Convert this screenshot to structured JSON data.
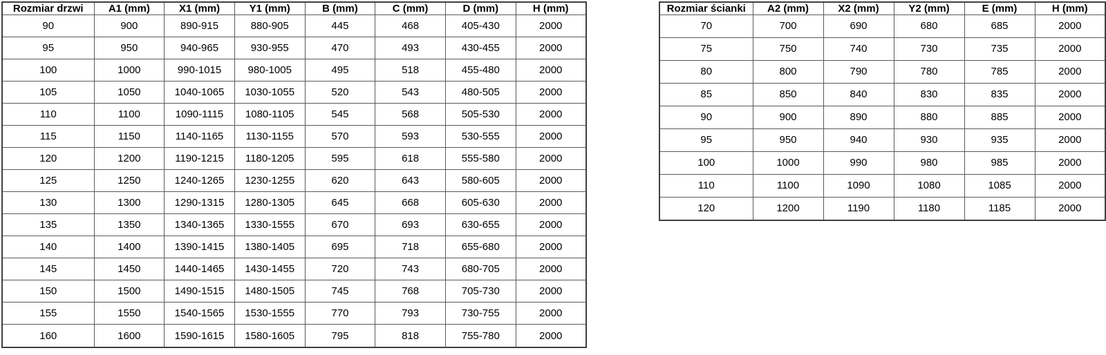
{
  "colors": {
    "background": "#ffffff",
    "table_border_outer": "#3f3f3f",
    "table_border_inner": "#595959",
    "text": "#000000"
  },
  "tables": {
    "doors": {
      "headers": [
        "Rozmiar drzwi",
        "A1 (mm)",
        "X1 (mm)",
        "Y1 (mm)",
        "B (mm)",
        "C (mm)",
        "D (mm)",
        "H (mm)"
      ],
      "rows": [
        [
          "90",
          "900",
          "890-915",
          "880-905",
          "445",
          "468",
          "405-430",
          "2000"
        ],
        [
          "95",
          "950",
          "940-965",
          "930-955",
          "470",
          "493",
          "430-455",
          "2000"
        ],
        [
          "100",
          "1000",
          "990-1015",
          "980-1005",
          "495",
          "518",
          "455-480",
          "2000"
        ],
        [
          "105",
          "1050",
          "1040-1065",
          "1030-1055",
          "520",
          "543",
          "480-505",
          "2000"
        ],
        [
          "110",
          "1100",
          "1090-1115",
          "1080-1105",
          "545",
          "568",
          "505-530",
          "2000"
        ],
        [
          "115",
          "1150",
          "1140-1165",
          "1130-1155",
          "570",
          "593",
          "530-555",
          "2000"
        ],
        [
          "120",
          "1200",
          "1190-1215",
          "1180-1205",
          "595",
          "618",
          "555-580",
          "2000"
        ],
        [
          "125",
          "1250",
          "1240-1265",
          "1230-1255",
          "620",
          "643",
          "580-605",
          "2000"
        ],
        [
          "130",
          "1300",
          "1290-1315",
          "1280-1305",
          "645",
          "668",
          "605-630",
          "2000"
        ],
        [
          "135",
          "1350",
          "1340-1365",
          "1330-1555",
          "670",
          "693",
          "630-655",
          "2000"
        ],
        [
          "140",
          "1400",
          "1390-1415",
          "1380-1405",
          "695",
          "718",
          "655-680",
          "2000"
        ],
        [
          "145",
          "1450",
          "1440-1465",
          "1430-1455",
          "720",
          "743",
          "680-705",
          "2000"
        ],
        [
          "150",
          "1500",
          "1490-1515",
          "1480-1505",
          "745",
          "768",
          "705-730",
          "2000"
        ],
        [
          "155",
          "1550",
          "1540-1565",
          "1530-1555",
          "770",
          "793",
          "730-755",
          "2000"
        ],
        [
          "160",
          "1600",
          "1590-1615",
          "1580-1605",
          "795",
          "818",
          "755-780",
          "2000"
        ]
      ]
    },
    "walls": {
      "headers": [
        "Rozmiar ścianki",
        "A2 (mm)",
        "X2 (mm)",
        "Y2 (mm)",
        "E (mm)",
        "H (mm)"
      ],
      "rows": [
        [
          "70",
          "700",
          "690",
          "680",
          "685",
          "2000"
        ],
        [
          "75",
          "750",
          "740",
          "730",
          "735",
          "2000"
        ],
        [
          "80",
          "800",
          "790",
          "780",
          "785",
          "2000"
        ],
        [
          "85",
          "850",
          "840",
          "830",
          "835",
          "2000"
        ],
        [
          "90",
          "900",
          "890",
          "880",
          "885",
          "2000"
        ],
        [
          "95",
          "950",
          "940",
          "930",
          "935",
          "2000"
        ],
        [
          "100",
          "1000",
          "990",
          "980",
          "985",
          "2000"
        ],
        [
          "110",
          "1100",
          "1090",
          "1080",
          "1085",
          "2000"
        ],
        [
          "120",
          "1200",
          "1190",
          "1180",
          "1185",
          "2000"
        ]
      ]
    }
  }
}
